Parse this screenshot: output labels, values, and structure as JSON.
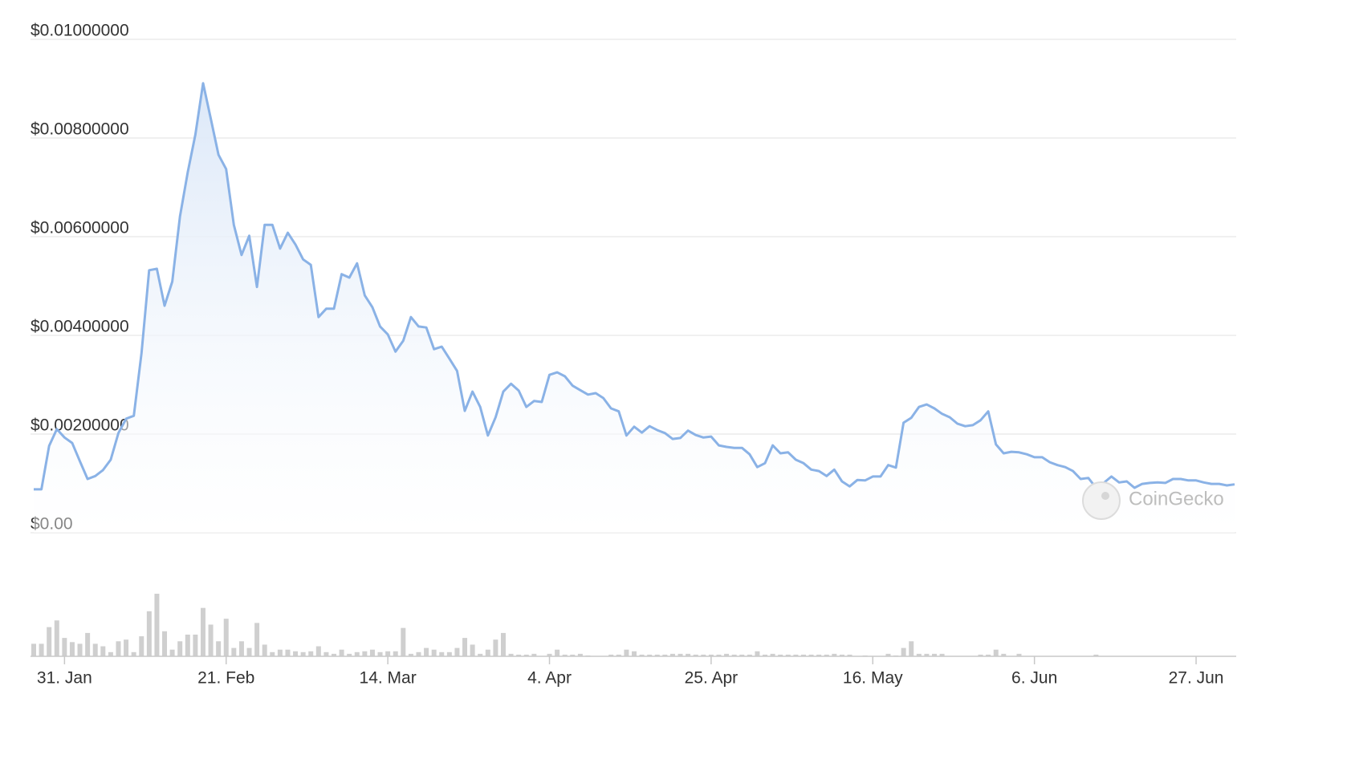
{
  "chart_data": {
    "type": "line",
    "x": [
      "27. Jan",
      "28. Jan",
      "29. Jan",
      "30. Jan",
      "31. Jan",
      "1. Feb",
      "2. Feb",
      "3. Feb",
      "4. Feb",
      "5. Feb",
      "6. Feb",
      "7. Feb",
      "8. Feb",
      "9. Feb",
      "10. Feb",
      "11. Feb",
      "12. Feb",
      "13. Feb",
      "14. Feb",
      "15. Feb",
      "16. Feb",
      "17. Feb",
      "18. Feb",
      "19. Feb",
      "20. Feb",
      "21. Feb",
      "22. Feb",
      "23. Feb",
      "24. Feb",
      "25. Feb",
      "26. Feb",
      "27. Feb",
      "28. Feb",
      "1. Mar",
      "2. Mar",
      "3. Mar",
      "4. Mar",
      "5. Mar",
      "6. Mar",
      "7. Mar",
      "8. Mar",
      "9. Mar",
      "10. Mar",
      "11. Mar",
      "12. Mar",
      "13. Mar",
      "14. Mar",
      "15. Mar",
      "16. Mar",
      "17. Mar",
      "18. Mar",
      "19. Mar",
      "20. Mar",
      "21. Mar",
      "22. Mar",
      "23. Mar",
      "24. Mar",
      "25. Mar",
      "26. Mar",
      "27. Mar",
      "28. Mar",
      "29. Mar",
      "30. Mar",
      "31. Mar",
      "1. Apr",
      "2. Apr",
      "3. Apr",
      "4. Apr",
      "5. Apr",
      "6. Apr",
      "7. Apr",
      "8. Apr",
      "9. Apr",
      "10. Apr",
      "11. Apr",
      "12. Apr",
      "13. Apr",
      "14. Apr",
      "15. Apr",
      "16. Apr",
      "17. Apr",
      "18. Apr",
      "19. Apr",
      "20. Apr",
      "21. Apr",
      "22. Apr",
      "23. Apr",
      "24. Apr",
      "25. Apr",
      "26. Apr",
      "27. Apr",
      "28. Apr",
      "29. Apr",
      "30. Apr",
      "1. May",
      "2. May",
      "3. May",
      "4. May",
      "5. May",
      "6. May",
      "7. May",
      "8. May",
      "9. May",
      "10. May",
      "11. May",
      "12. May",
      "13. May",
      "14. May",
      "15. May",
      "16. May",
      "17. May",
      "18. May",
      "19. May",
      "20. May",
      "21. May",
      "22. May",
      "23. May",
      "24. May",
      "25. May",
      "26. May",
      "27. May",
      "28. May",
      "29. May",
      "30. May",
      "31. May",
      "1. Jun",
      "2. Jun",
      "3. Jun",
      "4. Jun",
      "5. Jun",
      "6. Jun",
      "7. Jun",
      "8. Jun",
      "9. Jun",
      "10. Jun",
      "11. Jun",
      "12. Jun",
      "13. Jun",
      "14. Jun",
      "15. Jun",
      "16. Jun",
      "17. Jun",
      "18. Jun",
      "19. Jun",
      "20. Jun",
      "21. Jun",
      "22. Jun",
      "23. Jun",
      "24. Jun",
      "25. Jun",
      "26. Jun",
      "27. Jun",
      "28. Jun",
      "29. Jun",
      "30. Jun",
      "1. Jul",
      "2. Jul"
    ],
    "values": [
      0.00088,
      0.00088,
      0.00176,
      0.0021,
      0.00193,
      0.00182,
      0.00145,
      0.00109,
      0.00115,
      0.00127,
      0.00148,
      0.00202,
      0.00231,
      0.00237,
      0.00364,
      0.00532,
      0.00535,
      0.0046,
      0.00509,
      0.00641,
      0.0073,
      0.00807,
      0.00911,
      0.00839,
      0.00766,
      0.00737,
      0.00624,
      0.00563,
      0.00602,
      0.00498,
      0.00624,
      0.00624,
      0.00576,
      0.00608,
      0.00584,
      0.00554,
      0.00543,
      0.00437,
      0.00454,
      0.00454,
      0.00524,
      0.00517,
      0.00546,
      0.00481,
      0.00457,
      0.00418,
      0.00402,
      0.00367,
      0.00389,
      0.00437,
      0.00418,
      0.00416,
      0.00372,
      0.00377,
      0.00353,
      0.00328,
      0.00247,
      0.00286,
      0.00255,
      0.00197,
      0.00234,
      0.00286,
      0.00302,
      0.00288,
      0.00255,
      0.00267,
      0.00265,
      0.0032,
      0.00325,
      0.00317,
      0.00298,
      0.00289,
      0.0028,
      0.00283,
      0.00273,
      0.00252,
      0.00246,
      0.00197,
      0.00215,
      0.00203,
      0.00216,
      0.00208,
      0.00202,
      0.0019,
      0.00192,
      0.00207,
      0.00198,
      0.00193,
      0.00195,
      0.00177,
      0.00174,
      0.00172,
      0.00172,
      0.00159,
      0.00133,
      0.00141,
      0.00177,
      0.00161,
      0.00163,
      0.00148,
      0.00141,
      0.00128,
      0.00125,
      0.00115,
      0.00128,
      0.00104,
      0.00094,
      0.00107,
      0.00106,
      0.00114,
      0.00114,
      0.00137,
      0.00132,
      0.00223,
      0.00233,
      0.00255,
      0.0026,
      0.00252,
      0.00241,
      0.00234,
      0.00221,
      0.00216,
      0.00218,
      0.00228,
      0.00246,
      0.00179,
      0.00161,
      0.00164,
      0.00163,
      0.00159,
      0.00153,
      0.00153,
      0.00143,
      0.00137,
      0.00133,
      0.00125,
      0.00109,
      0.00111,
      0.00091,
      0.00101,
      0.00114,
      0.00102,
      0.00104,
      0.00091,
      0.00099,
      0.00101,
      0.00102,
      0.00101,
      0.00109,
      0.00109,
      0.00106,
      0.00106,
      0.00102,
      0.00099,
      0.00099,
      0.00096,
      0.00098
    ],
    "volume": [
      15,
      15,
      35,
      43,
      22,
      17,
      15,
      28,
      15,
      12,
      5,
      18,
      20,
      5,
      24,
      54,
      75,
      30,
      8,
      18,
      26,
      26,
      58,
      38,
      18,
      45,
      10,
      18,
      10,
      40,
      14,
      5,
      8,
      8,
      6,
      5,
      6,
      12,
      5,
      3,
      8,
      3,
      5,
      6,
      8,
      5,
      6,
      6,
      34,
      3,
      5,
      10,
      8,
      5,
      5,
      10,
      22,
      14,
      3,
      8,
      20,
      28,
      3,
      2,
      2,
      3,
      0,
      3,
      8,
      2,
      2,
      3,
      1,
      0,
      0,
      2,
      2,
      8,
      6,
      2,
      2,
      2,
      2,
      3,
      3,
      3,
      2,
      2,
      2,
      2,
      3,
      2,
      2,
      2,
      6,
      2,
      3,
      2,
      2,
      2,
      2,
      2,
      2,
      2,
      3,
      2,
      2,
      0,
      1,
      0,
      0,
      3,
      1,
      10,
      18,
      3,
      3,
      3,
      3,
      0,
      0,
      0,
      0,
      2,
      2,
      8,
      3,
      0,
      3,
      0,
      0,
      0,
      0,
      0,
      0,
      0,
      0,
      0,
      2,
      0,
      0,
      0,
      0,
      0,
      0,
      0,
      0,
      0,
      0,
      0,
      0,
      0,
      0,
      0,
      0,
      0,
      0
    ],
    "color": "#8ab2e6",
    "volume_color": "#cfcfcf",
    "ylim": [
      0,
      0.01
    ],
    "yticks": [
      {
        "value": 0,
        "label": "$0.00"
      },
      {
        "value": 0.002,
        "label": "$0.00200000"
      },
      {
        "value": 0.004,
        "label": "$0.00400000"
      },
      {
        "value": 0.006,
        "label": "$0.00600000"
      },
      {
        "value": 0.008,
        "label": "$0.00800000"
      },
      {
        "value": 0.01,
        "label": "$0.01000000"
      }
    ],
    "xticks": [
      "31. Jan",
      "21. Feb",
      "14. Mar",
      "4. Apr",
      "25. Apr",
      "16. May",
      "6. Jun",
      "27. Jun"
    ],
    "grid": true,
    "watermark": "CoinGecko"
  }
}
